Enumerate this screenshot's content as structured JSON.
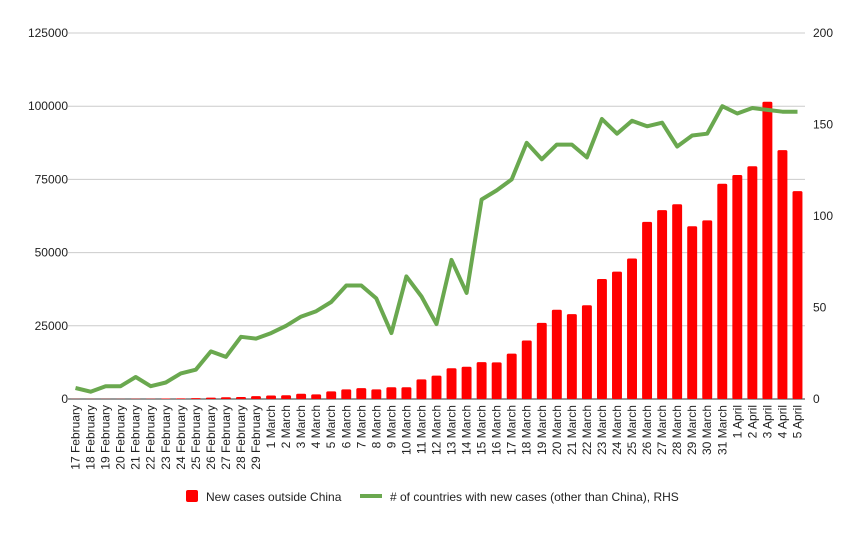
{
  "chart_data": {
    "type": "bar",
    "title": "",
    "xlabel": "",
    "ylabel": "",
    "y2label": "",
    "ylim": [
      0,
      125000
    ],
    "y2lim": [
      0,
      200
    ],
    "yticks": [
      "0",
      "25000",
      "50000",
      "75000",
      "100000",
      "125000"
    ],
    "y2ticks": [
      "0",
      "50",
      "100",
      "150",
      "200"
    ],
    "grid": true,
    "legend_position": "bottom",
    "categories": [
      "17 February",
      "18 February",
      "19 February",
      "20 February",
      "21 February",
      "22 February",
      "23 February",
      "24 February",
      "25 February",
      "26 February",
      "27 February",
      "28 February",
      "29 February",
      "1 March",
      "2 March",
      "3 March",
      "4 March",
      "5 March",
      "6 March",
      "7 March",
      "8 March",
      "9 March",
      "10 March",
      "11 March",
      "12 March",
      "13 March",
      "14 March",
      "15 March",
      "16 March",
      "17 March",
      "18 March",
      "19 March",
      "20 March",
      "21 March",
      "22 March",
      "23 March",
      "24 March",
      "25 March",
      "26 March",
      "27 March",
      "28 March",
      "29 March",
      "30 March",
      "31 March",
      "1 April",
      "2 April",
      "3 April",
      "4 April",
      "5 April"
    ],
    "series": [
      {
        "name": "New cases outside China",
        "type": "bar",
        "axis": "left",
        "color": "#ff0000",
        "values": [
          50,
          40,
          60,
          50,
          80,
          100,
          150,
          200,
          300,
          450,
          600,
          700,
          1000,
          1200,
          1300,
          1800,
          1600,
          2600,
          3300,
          3700,
          3300,
          4000,
          4000,
          6700,
          8000,
          10500,
          11000,
          12600,
          12500,
          15500,
          20000,
          26000,
          30500,
          29000,
          32000,
          41000,
          43500,
          48000,
          60500,
          64500,
          66500,
          59000,
          61000,
          73500,
          76500,
          79500,
          101500,
          85000,
          71000
        ]
      },
      {
        "name": "# of countries with new cases (other than China), RHS",
        "type": "line",
        "axis": "right",
        "color": "#6aa84f",
        "values": [
          6,
          4,
          7,
          7,
          12,
          7,
          9,
          14,
          16,
          26,
          23,
          34,
          33,
          36,
          40,
          45,
          48,
          53,
          62,
          62,
          55,
          36,
          67,
          56,
          41,
          76,
          58,
          109,
          114,
          120,
          140,
          131,
          139,
          139,
          132,
          153,
          145,
          152,
          149,
          151,
          138,
          144,
          145,
          160,
          156,
          159,
          158,
          157,
          157
        ]
      }
    ]
  }
}
